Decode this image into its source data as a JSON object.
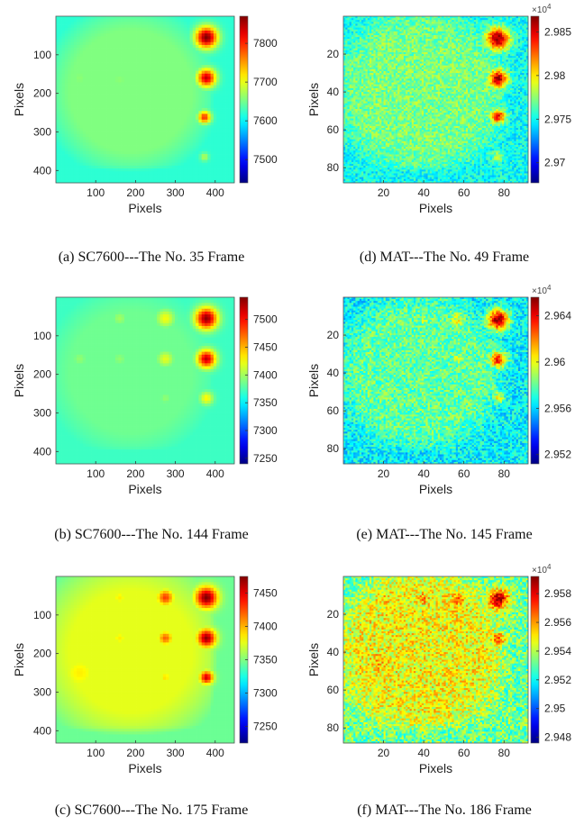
{
  "chart_data": [
    {
      "id": "a",
      "type": "heatmap",
      "caption": "(a) SC7600---The No. 35 Frame",
      "xlabel": "Pixels",
      "ylabel": "Pixels",
      "xlim": [
        0,
        448
      ],
      "ylim": [
        0,
        432
      ],
      "xticks": [
        "100",
        "200",
        "300",
        "400"
      ],
      "yticks": [
        "100",
        "200",
        "300",
        "400"
      ],
      "colorbar": {
        "min": 7440,
        "max": 7870,
        "ticks": [
          "7500",
          "7600",
          "7700",
          "7800"
        ],
        "tickvals": [
          7500,
          7600,
          7700,
          7800
        ],
        "exponent": ""
      },
      "background": {
        "base": 7620,
        "hi": 7655,
        "corner_low": 7560
      },
      "spots": [
        {
          "x": 378,
          "y": 55,
          "r": 26,
          "value": 7870
        },
        {
          "x": 378,
          "y": 160,
          "r": 22,
          "value": 7840
        },
        {
          "x": 373,
          "y": 262,
          "r": 15,
          "value": 7800
        },
        {
          "x": 373,
          "y": 365,
          "r": 10,
          "value": 7680
        },
        {
          "x": 60,
          "y": 160,
          "r": 30,
          "value": 7660
        },
        {
          "x": 160,
          "y": 165,
          "r": 30,
          "value": 7660
        }
      ]
    },
    {
      "id": "d",
      "type": "heatmap",
      "caption": "(d) MAT---The No. 49 Frame",
      "xlabel": "Pixels",
      "ylabel": "Pixels",
      "xlim": [
        0,
        92
      ],
      "ylim": [
        0,
        88
      ],
      "xticks": [
        "20",
        "40",
        "60",
        "80"
      ],
      "yticks": [
        "20",
        "40",
        "60",
        "80"
      ],
      "colorbar": {
        "min": 29.677,
        "max": 29.868,
        "ticks": [
          "2.985",
          "2.98",
          "2.975",
          "2.97"
        ],
        "tickvals": [
          29.85,
          29.8,
          29.75,
          29.7
        ],
        "exponent": "×10"
      },
      "background": {
        "base": 29.75,
        "hi": 29.772,
        "corner_low": 29.72
      },
      "noise": 0.02,
      "spots": [
        {
          "x": 77,
          "y": 12,
          "r": 5.5,
          "value": 29.868
        },
        {
          "x": 77,
          "y": 33,
          "r": 4.5,
          "value": 29.86
        },
        {
          "x": 77,
          "y": 53,
          "r": 3.5,
          "value": 29.845
        },
        {
          "x": 77,
          "y": 74,
          "r": 2.5,
          "value": 29.79
        },
        {
          "x": 15,
          "y": 40,
          "r": 7,
          "value": 29.775
        }
      ]
    },
    {
      "id": "b",
      "type": "heatmap",
      "caption": "(b) SC7600---The No. 144 Frame",
      "xlabel": "Pixels",
      "ylabel": "Pixels",
      "xlim": [
        0,
        448
      ],
      "ylim": [
        0,
        432
      ],
      "xticks": [
        "100",
        "200",
        "300",
        "400"
      ],
      "yticks": [
        "100",
        "200",
        "300",
        "400"
      ],
      "colorbar": {
        "min": 7240,
        "max": 7540,
        "ticks": [
          "7500",
          "7450",
          "7400",
          "7350",
          "7300",
          "7250"
        ],
        "tickvals": [
          7500,
          7450,
          7400,
          7350,
          7300,
          7250
        ],
        "exponent": ""
      },
      "background": {
        "base": 7370,
        "hi": 7385,
        "corner_low": 7340
      },
      "spots": [
        {
          "x": 378,
          "y": 55,
          "r": 26,
          "value": 7535
        },
        {
          "x": 378,
          "y": 160,
          "r": 22,
          "value": 7520
        },
        {
          "x": 378,
          "y": 262,
          "r": 16,
          "value": 7430
        },
        {
          "x": 275,
          "y": 55,
          "r": 22,
          "value": 7425
        },
        {
          "x": 275,
          "y": 160,
          "r": 20,
          "value": 7420
        },
        {
          "x": 275,
          "y": 262,
          "r": 16,
          "value": 7395
        },
        {
          "x": 160,
          "y": 55,
          "r": 18,
          "value": 7400
        },
        {
          "x": 160,
          "y": 160,
          "r": 18,
          "value": 7395
        },
        {
          "x": 60,
          "y": 160,
          "r": 20,
          "value": 7395
        }
      ]
    },
    {
      "id": "e",
      "type": "heatmap",
      "caption": "(e) MAT---The No. 145 Frame",
      "xlabel": "Pixels",
      "ylabel": "Pixels",
      "xlim": [
        0,
        92
      ],
      "ylim": [
        0,
        88
      ],
      "xticks": [
        "20",
        "40",
        "60",
        "80"
      ],
      "yticks": [
        "20",
        "40",
        "60",
        "80"
      ],
      "colorbar": {
        "min": 29.512,
        "max": 29.656,
        "ticks": [
          "2.964",
          "2.96",
          "2.956",
          "2.952"
        ],
        "tickvals": [
          29.64,
          29.6,
          29.56,
          29.52
        ],
        "exponent": "×10"
      },
      "background": {
        "base": 29.565,
        "hi": 29.58,
        "corner_low": 29.535
      },
      "noise": 0.018,
      "spots": [
        {
          "x": 77,
          "y": 12,
          "r": 5,
          "value": 29.654
        },
        {
          "x": 77,
          "y": 33,
          "r": 4,
          "value": 29.635
        },
        {
          "x": 77,
          "y": 53,
          "r": 3,
          "value": 29.6
        },
        {
          "x": 57,
          "y": 12,
          "r": 4,
          "value": 29.6
        },
        {
          "x": 57,
          "y": 33,
          "r": 3.5,
          "value": 29.595
        },
        {
          "x": 40,
          "y": 12,
          "r": 4,
          "value": 29.59
        },
        {
          "x": 42,
          "y": 45,
          "r": 9,
          "value": 29.535
        }
      ]
    },
    {
      "id": "c",
      "type": "heatmap",
      "caption": "(c) SC7600---The No. 175 Frame",
      "xlabel": "Pixels",
      "ylabel": "Pixels",
      "xlim": [
        0,
        448
      ],
      "ylim": [
        0,
        432
      ],
      "xticks": [
        "100",
        "200",
        "300",
        "400"
      ],
      "yticks": [
        "100",
        "200",
        "300",
        "400"
      ],
      "colorbar": {
        "min": 7225,
        "max": 7475,
        "ticks": [
          "7450",
          "7400",
          "7350",
          "7300",
          "7250"
        ],
        "tickvals": [
          7450,
          7400,
          7350,
          7300,
          7250
        ],
        "exponent": ""
      },
      "background": {
        "base": 7345,
        "hi": 7375,
        "corner_low": 7320
      },
      "spots": [
        {
          "x": 378,
          "y": 55,
          "r": 26,
          "value": 7475
        },
        {
          "x": 378,
          "y": 160,
          "r": 22,
          "value": 7470
        },
        {
          "x": 378,
          "y": 262,
          "r": 16,
          "value": 7455
        },
        {
          "x": 275,
          "y": 55,
          "r": 20,
          "value": 7430
        },
        {
          "x": 275,
          "y": 160,
          "r": 18,
          "value": 7420
        },
        {
          "x": 275,
          "y": 262,
          "r": 14,
          "value": 7390
        },
        {
          "x": 160,
          "y": 55,
          "r": 18,
          "value": 7385
        },
        {
          "x": 160,
          "y": 160,
          "r": 18,
          "value": 7385
        },
        {
          "x": 60,
          "y": 250,
          "r": 45,
          "value": 7385
        }
      ]
    },
    {
      "id": "f",
      "type": "heatmap",
      "caption": "(f) MAT---The No. 186 Frame",
      "xlabel": "Pixels",
      "ylabel": "Pixels",
      "xlim": [
        0,
        92
      ],
      "ylim": [
        0,
        88
      ],
      "xticks": [
        "20",
        "40",
        "60",
        "80"
      ],
      "yticks": [
        "20",
        "40",
        "60",
        "80"
      ],
      "colorbar": {
        "min": 29.476,
        "max": 29.592,
        "ticks": [
          "2.958",
          "2.956",
          "2.954",
          "2.952",
          "2.95",
          "2.948"
        ],
        "tickvals": [
          29.58,
          29.56,
          29.54,
          29.52,
          29.5,
          29.48
        ],
        "exponent": "×10"
      },
      "background": {
        "base": 29.532,
        "hi": 29.548,
        "corner_low": 29.51
      },
      "noise": 0.018,
      "spots": [
        {
          "x": 77,
          "y": 12,
          "r": 5,
          "value": 29.59
        },
        {
          "x": 77,
          "y": 33,
          "r": 3.5,
          "value": 29.57
        },
        {
          "x": 57,
          "y": 12,
          "r": 4,
          "value": 29.57
        },
        {
          "x": 40,
          "y": 12,
          "r": 4,
          "value": 29.56
        },
        {
          "x": 18,
          "y": 45,
          "r": 9,
          "value": 29.555
        },
        {
          "x": 20,
          "y": 12,
          "r": 5,
          "value": 29.555
        }
      ]
    }
  ]
}
